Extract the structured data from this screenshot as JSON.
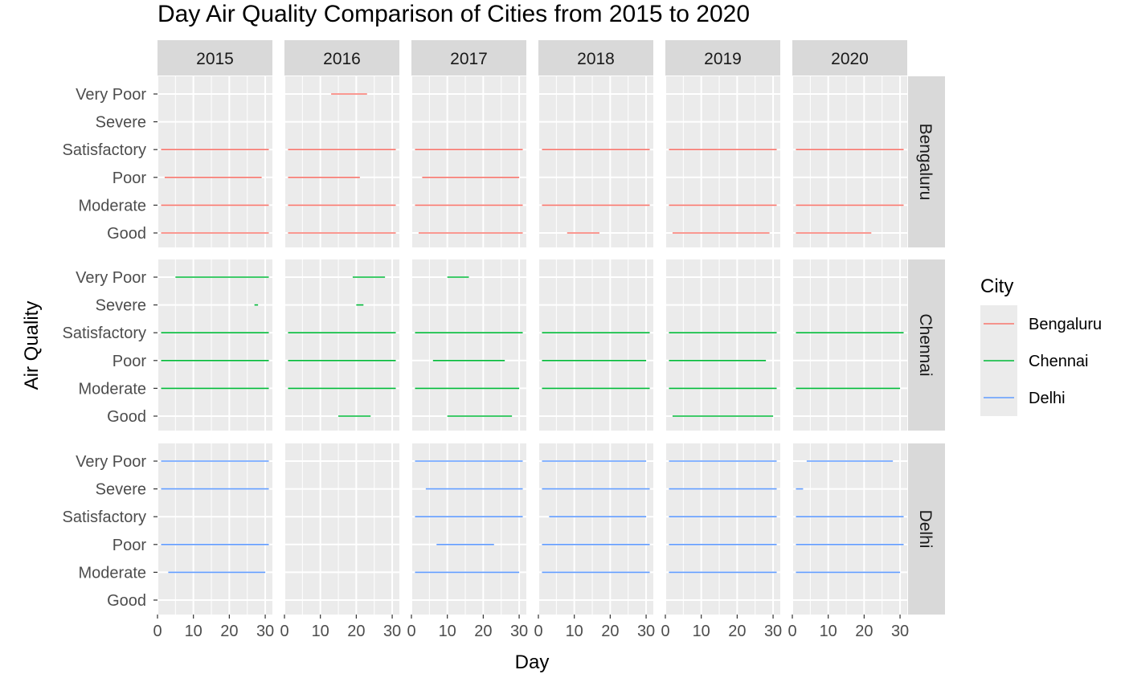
{
  "chart_data": {
    "type": "line",
    "title": "Day Air Quality Comparison of Cities from 2015 to 2020",
    "xlabel": "Day",
    "ylabel": "Air Quality",
    "xlim": [
      0,
      32
    ],
    "x_ticks": [
      "0",
      "10",
      "20",
      "30"
    ],
    "x_tick_values": [
      0,
      10,
      20,
      30
    ],
    "columns": [
      "2015",
      "2016",
      "2017",
      "2018",
      "2019",
      "2020"
    ],
    "rows": [
      "Bengaluru",
      "Chennai",
      "Delhi"
    ],
    "categories": [
      "Very Poor",
      "Severe",
      "Satisfactory",
      "Poor",
      "Moderate",
      "Good"
    ],
    "grid": true,
    "legend": {
      "title": "City",
      "position": "right",
      "entries": [
        {
          "name": "Bengaluru",
          "color": "#F8766D"
        },
        {
          "name": "Chennai",
          "color": "#00BA38"
        },
        {
          "name": "Delhi",
          "color": "#619CFF"
        }
      ]
    },
    "series": [
      {
        "name": "Bengaluru",
        "color": "#F8766D",
        "segments": [
          {
            "year": "2015",
            "category": "Satisfactory",
            "x": [
              1,
              31
            ]
          },
          {
            "year": "2015",
            "category": "Poor",
            "x": [
              2,
              29
            ]
          },
          {
            "year": "2015",
            "category": "Moderate",
            "x": [
              1,
              31
            ]
          },
          {
            "year": "2015",
            "category": "Good",
            "x": [
              1,
              31
            ]
          },
          {
            "year": "2016",
            "category": "Very Poor",
            "x": [
              13,
              23
            ]
          },
          {
            "year": "2016",
            "category": "Satisfactory",
            "x": [
              1,
              31
            ]
          },
          {
            "year": "2016",
            "category": "Poor",
            "x": [
              1,
              21
            ]
          },
          {
            "year": "2016",
            "category": "Moderate",
            "x": [
              1,
              31
            ]
          },
          {
            "year": "2016",
            "category": "Good",
            "x": [
              1,
              31
            ]
          },
          {
            "year": "2017",
            "category": "Satisfactory",
            "x": [
              1,
              31
            ]
          },
          {
            "year": "2017",
            "category": "Poor",
            "x": [
              3,
              30
            ]
          },
          {
            "year": "2017",
            "category": "Moderate",
            "x": [
              1,
              31
            ]
          },
          {
            "year": "2017",
            "category": "Good",
            "x": [
              2,
              31
            ]
          },
          {
            "year": "2018",
            "category": "Satisfactory",
            "x": [
              1,
              31
            ]
          },
          {
            "year": "2018",
            "category": "Moderate",
            "x": [
              1,
              31
            ]
          },
          {
            "year": "2018",
            "category": "Good",
            "x": [
              8,
              17
            ]
          },
          {
            "year": "2019",
            "category": "Satisfactory",
            "x": [
              1,
              31
            ]
          },
          {
            "year": "2019",
            "category": "Moderate",
            "x": [
              1,
              31
            ]
          },
          {
            "year": "2019",
            "category": "Good",
            "x": [
              2,
              29
            ]
          },
          {
            "year": "2020",
            "category": "Satisfactory",
            "x": [
              1,
              31
            ]
          },
          {
            "year": "2020",
            "category": "Moderate",
            "x": [
              1,
              31
            ]
          },
          {
            "year": "2020",
            "category": "Good",
            "x": [
              1,
              22
            ]
          }
        ]
      },
      {
        "name": "Chennai",
        "color": "#00BA38",
        "segments": [
          {
            "year": "2015",
            "category": "Very Poor",
            "x": [
              5,
              31
            ]
          },
          {
            "year": "2015",
            "category": "Severe",
            "x": [
              27,
              28
            ]
          },
          {
            "year": "2015",
            "category": "Satisfactory",
            "x": [
              1,
              31
            ]
          },
          {
            "year": "2015",
            "category": "Poor",
            "x": [
              1,
              31
            ]
          },
          {
            "year": "2015",
            "category": "Moderate",
            "x": [
              1,
              31
            ]
          },
          {
            "year": "2016",
            "category": "Very Poor",
            "x": [
              19,
              28
            ]
          },
          {
            "year": "2016",
            "category": "Severe",
            "x": [
              20,
              22
            ]
          },
          {
            "year": "2016",
            "category": "Satisfactory",
            "x": [
              1,
              31
            ]
          },
          {
            "year": "2016",
            "category": "Poor",
            "x": [
              1,
              31
            ]
          },
          {
            "year": "2016",
            "category": "Moderate",
            "x": [
              1,
              31
            ]
          },
          {
            "year": "2016",
            "category": "Good",
            "x": [
              15,
              24
            ]
          },
          {
            "year": "2017",
            "category": "Very Poor",
            "x": [
              10,
              16
            ]
          },
          {
            "year": "2017",
            "category": "Satisfactory",
            "x": [
              1,
              31
            ]
          },
          {
            "year": "2017",
            "category": "Poor",
            "x": [
              6,
              26
            ]
          },
          {
            "year": "2017",
            "category": "Moderate",
            "x": [
              1,
              30
            ]
          },
          {
            "year": "2017",
            "category": "Good",
            "x": [
              10,
              28
            ]
          },
          {
            "year": "2018",
            "category": "Satisfactory",
            "x": [
              1,
              31
            ]
          },
          {
            "year": "2018",
            "category": "Poor",
            "x": [
              1,
              30
            ]
          },
          {
            "year": "2018",
            "category": "Moderate",
            "x": [
              1,
              31
            ]
          },
          {
            "year": "2019",
            "category": "Satisfactory",
            "x": [
              1,
              31
            ]
          },
          {
            "year": "2019",
            "category": "Poor",
            "x": [
              1,
              28
            ]
          },
          {
            "year": "2019",
            "category": "Moderate",
            "x": [
              1,
              31
            ]
          },
          {
            "year": "2019",
            "category": "Good",
            "x": [
              2,
              30
            ]
          },
          {
            "year": "2020",
            "category": "Satisfactory",
            "x": [
              1,
              31
            ]
          },
          {
            "year": "2020",
            "category": "Moderate",
            "x": [
              1,
              30
            ]
          }
        ]
      },
      {
        "name": "Delhi",
        "color": "#619CFF",
        "segments": [
          {
            "year": "2015",
            "category": "Very Poor",
            "x": [
              1,
              31
            ]
          },
          {
            "year": "2015",
            "category": "Severe",
            "x": [
              1,
              31
            ]
          },
          {
            "year": "2015",
            "category": "Poor",
            "x": [
              1,
              31
            ]
          },
          {
            "year": "2015",
            "category": "Moderate",
            "x": [
              3,
              30
            ]
          },
          {
            "year": "2017",
            "category": "Very Poor",
            "x": [
              1,
              31
            ]
          },
          {
            "year": "2017",
            "category": "Severe",
            "x": [
              4,
              31
            ]
          },
          {
            "year": "2017",
            "category": "Satisfactory",
            "x": [
              1,
              31
            ]
          },
          {
            "year": "2017",
            "category": "Poor",
            "x": [
              7,
              23
            ]
          },
          {
            "year": "2017",
            "category": "Moderate",
            "x": [
              1,
              30
            ]
          },
          {
            "year": "2018",
            "category": "Very Poor",
            "x": [
              1,
              30
            ]
          },
          {
            "year": "2018",
            "category": "Severe",
            "x": [
              1,
              31
            ]
          },
          {
            "year": "2018",
            "category": "Satisfactory",
            "x": [
              3,
              30
            ]
          },
          {
            "year": "2018",
            "category": "Poor",
            "x": [
              1,
              31
            ]
          },
          {
            "year": "2018",
            "category": "Moderate",
            "x": [
              1,
              31
            ]
          },
          {
            "year": "2019",
            "category": "Very Poor",
            "x": [
              1,
              31
            ]
          },
          {
            "year": "2019",
            "category": "Severe",
            "x": [
              1,
              31
            ]
          },
          {
            "year": "2019",
            "category": "Satisfactory",
            "x": [
              1,
              31
            ]
          },
          {
            "year": "2019",
            "category": "Poor",
            "x": [
              1,
              31
            ]
          },
          {
            "year": "2019",
            "category": "Moderate",
            "x": [
              1,
              31
            ]
          },
          {
            "year": "2020",
            "category": "Very Poor",
            "x": [
              4,
              28
            ]
          },
          {
            "year": "2020",
            "category": "Severe",
            "x": [
              1,
              3
            ]
          },
          {
            "year": "2020",
            "category": "Satisfactory",
            "x": [
              1,
              31
            ]
          },
          {
            "year": "2020",
            "category": "Poor",
            "x": [
              1,
              31
            ]
          },
          {
            "year": "2020",
            "category": "Moderate",
            "x": [
              1,
              30
            ]
          }
        ]
      }
    ]
  }
}
